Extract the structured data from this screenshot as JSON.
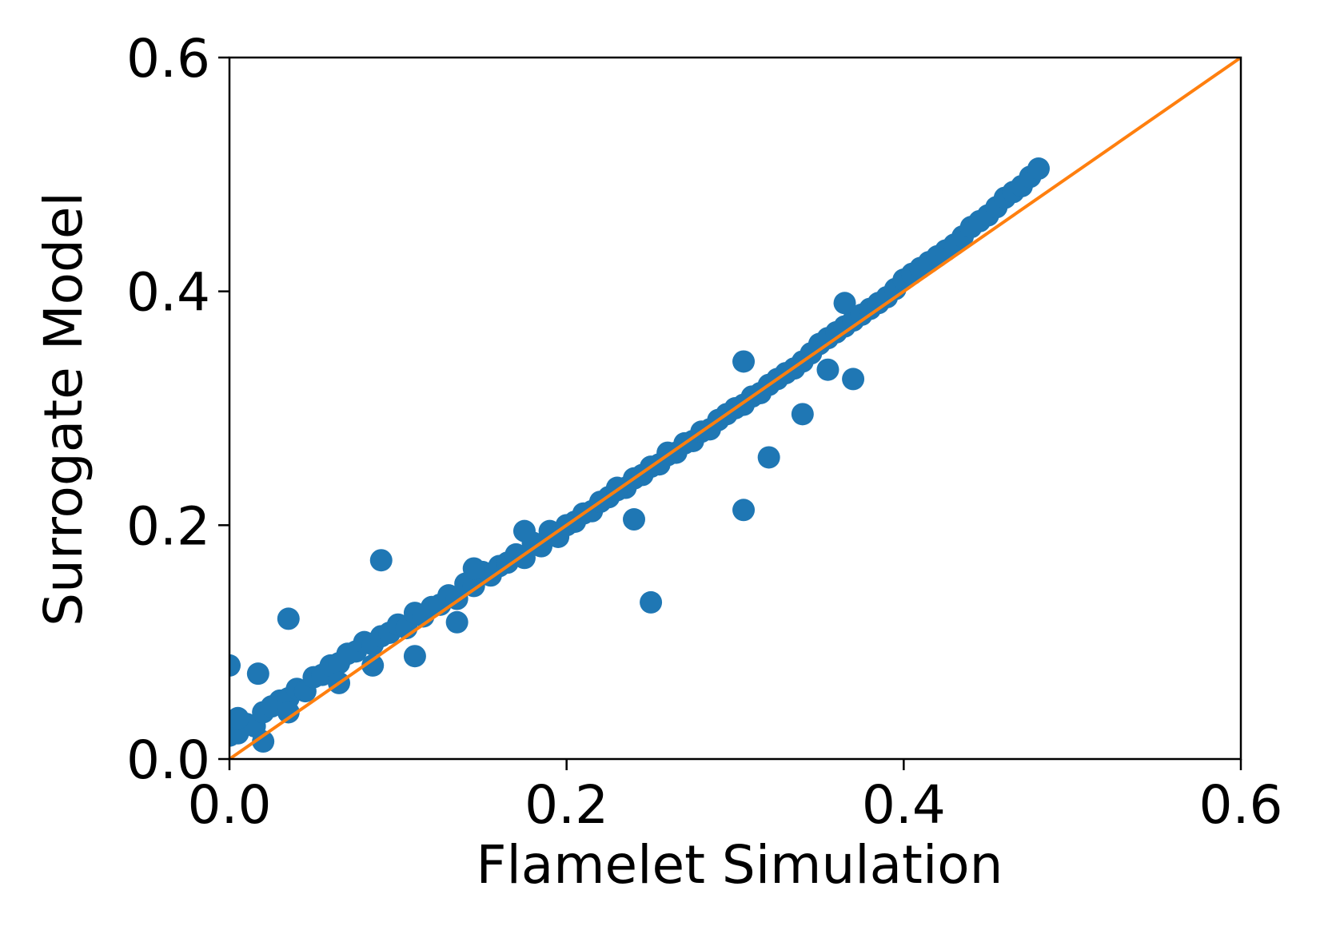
{
  "chart_data": {
    "type": "scatter",
    "xlabel": "Flamelet Simulation",
    "ylabel": "Surrogate Model",
    "xlim": [
      0,
      0.6
    ],
    "ylim": [
      0,
      0.6
    ],
    "xticks": [
      {
        "value": 0,
        "label": "0.0"
      },
      0.2,
      0.4,
      0.6
    ],
    "yticks": [
      {
        "value": 0,
        "label": "0.0"
      },
      0.2,
      0.4,
      0.6
    ],
    "series": [
      {
        "type": "scatter",
        "color": "#1f77b4",
        "x": [
          0,
          0.005,
          0.01,
          0.015,
          0.02,
          0.025,
          0.03,
          0.035,
          0.04,
          0.045,
          0.05,
          0.055,
          0.06,
          0.065,
          0.07,
          0.075,
          0.08,
          0.085,
          0.09,
          0.095,
          0.1,
          0.105,
          0.11,
          0.115,
          0.12,
          0.125,
          0.13,
          0.135,
          0.14,
          0.145,
          0.15,
          0.155,
          0.16,
          0.165,
          0.17,
          0.175,
          0.18,
          0.185,
          0.19,
          0.195,
          0.2,
          0.205,
          0.21,
          0.215,
          0.22,
          0.225,
          0.23,
          0.235,
          0.24,
          0.245,
          0.25,
          0.255,
          0.26,
          0.265,
          0.27,
          0.275,
          0.28,
          0.285,
          0.29,
          0.295,
          0.3,
          0.305,
          0.31,
          0.315,
          0.32,
          0.325,
          0.33,
          0.335,
          0.34,
          0.345,
          0.35,
          0.355,
          0.36,
          0.365,
          0.37,
          0.375,
          0.38,
          0.385,
          0.39,
          0.395,
          0.4,
          0.405,
          0.41,
          0.415,
          0.42,
          0.425,
          0.43,
          0.435,
          0.44,
          0.445,
          0.45,
          0.455,
          0.46,
          0.465,
          0.47,
          0.475,
          0.48,
          0,
          0.017,
          0.035,
          0.09,
          0.25,
          0.305,
          0.32,
          0.34,
          0.355,
          0.37,
          0.305,
          0.175,
          0.145,
          0.24,
          0.11,
          0.085,
          0.135,
          0.26,
          0.035,
          0.02,
          0.005,
          0.065,
          0.23,
          0.365
        ],
        "y": [
          0.02,
          0.022,
          0.03,
          0.028,
          0.04,
          0.045,
          0.05,
          0.052,
          0.06,
          0.058,
          0.07,
          0.072,
          0.08,
          0.082,
          0.09,
          0.092,
          0.1,
          0.098,
          0.105,
          0.108,
          0.115,
          0.112,
          0.125,
          0.122,
          0.13,
          0.132,
          0.14,
          0.137,
          0.15,
          0.148,
          0.16,
          0.157,
          0.165,
          0.168,
          0.175,
          0.172,
          0.185,
          0.182,
          0.195,
          0.19,
          0.2,
          0.203,
          0.21,
          0.212,
          0.22,
          0.224,
          0.23,
          0.232,
          0.24,
          0.243,
          0.25,
          0.252,
          0.26,
          0.262,
          0.27,
          0.272,
          0.28,
          0.282,
          0.29,
          0.295,
          0.3,
          0.303,
          0.31,
          0.313,
          0.32,
          0.325,
          0.33,
          0.334,
          0.34,
          0.347,
          0.355,
          0.36,
          0.365,
          0.37,
          0.375,
          0.38,
          0.385,
          0.39,
          0.395,
          0.402,
          0.41,
          0.415,
          0.42,
          0.425,
          0.43,
          0.435,
          0.44,
          0.447,
          0.455,
          0.46,
          0.465,
          0.472,
          0.48,
          0.485,
          0.49,
          0.498,
          0.505,
          0.08,
          0.073,
          0.12,
          0.17,
          0.134,
          0.213,
          0.258,
          0.295,
          0.333,
          0.325,
          0.34,
          0.195,
          0.163,
          0.205,
          0.088,
          0.08,
          0.117,
          0.262,
          0.04,
          0.015,
          0.035,
          0.065,
          0.232,
          0.39
        ]
      },
      {
        "type": "line",
        "color": "#ff7f0e",
        "x": [
          0,
          0.6
        ],
        "y": [
          0,
          0.6
        ]
      }
    ]
  }
}
